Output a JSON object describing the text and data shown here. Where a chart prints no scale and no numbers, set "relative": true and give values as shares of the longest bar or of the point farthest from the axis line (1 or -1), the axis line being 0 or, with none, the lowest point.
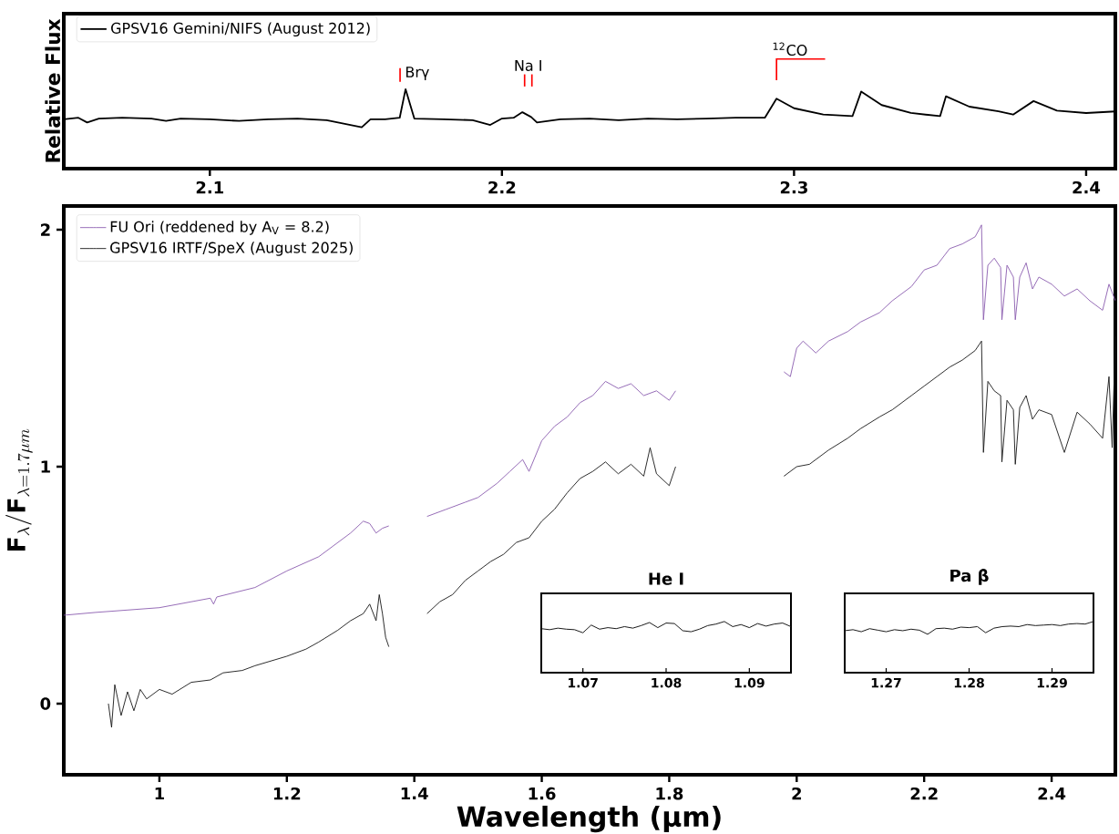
{
  "chart_data": [
    {
      "type": "line",
      "relative": true,
      "ylabel": "Relative Flux",
      "xlim": [
        2.05,
        2.41
      ],
      "xticks": [
        2.1,
        2.2,
        2.3,
        2.4
      ],
      "legend": "top left",
      "series": [
        {
          "name": "GPSV16 Gemini/NIFS (August 2012)",
          "color": "#000000",
          "x": [
            2.05,
            2.055,
            2.058,
            2.062,
            2.07,
            2.08,
            2.085,
            2.09,
            2.1,
            2.11,
            2.12,
            2.13,
            2.14,
            2.152,
            2.155,
            2.16,
            2.165,
            2.167,
            2.17,
            2.18,
            2.19,
            2.196,
            2.2,
            2.204,
            2.207,
            2.21,
            2.212,
            2.22,
            2.23,
            2.24,
            2.25,
            2.26,
            2.27,
            2.28,
            2.29,
            2.294,
            2.3,
            2.31,
            2.32,
            2.323,
            2.33,
            2.34,
            2.35,
            2.352,
            2.36,
            2.37,
            2.375,
            2.382,
            2.39,
            2.4,
            2.41
          ],
          "values": [
            0.62,
            0.64,
            0.58,
            0.63,
            0.64,
            0.63,
            0.6,
            0.63,
            0.62,
            0.6,
            0.62,
            0.63,
            0.61,
            0.52,
            0.62,
            0.62,
            0.64,
            1.0,
            0.63,
            0.62,
            0.61,
            0.55,
            0.63,
            0.64,
            0.71,
            0.65,
            0.58,
            0.62,
            0.63,
            0.61,
            0.63,
            0.62,
            0.63,
            0.64,
            0.64,
            0.88,
            0.76,
            0.68,
            0.66,
            0.97,
            0.8,
            0.7,
            0.66,
            0.91,
            0.78,
            0.72,
            0.68,
            0.85,
            0.73,
            0.7,
            0.72
          ]
        }
      ],
      "annotations": [
        "Brγ",
        "Na I",
        "$^{12}$CO"
      ]
    },
    {
      "type": "line",
      "xlabel": "Wavelength (μm)",
      "ylabel": "\\mathbf{F}_{\\lambda}/\\mathbf{F}_{\\lambda = 1.7\\mu m}",
      "xlim": [
        0.85,
        2.5
      ],
      "ylim": [
        -0.3,
        2.1
      ],
      "xticks": [
        1,
        1.2,
        1.4,
        1.6,
        1.8,
        2,
        2.2,
        2.4
      ],
      "yticks": [
        0,
        1,
        2
      ],
      "legend": "top left",
      "series": [
        {
          "name": "FU Ori (reddened by A$_{V}$ = 8.2)",
          "color": "#8c5fb0",
          "x": [
            0.85,
            0.9,
            0.95,
            1.0,
            1.05,
            1.08,
            1.085,
            1.09,
            1.15,
            1.2,
            1.25,
            1.3,
            1.32,
            1.33,
            1.34,
            1.35,
            1.36,
            1.39,
            1.42,
            1.45,
            1.48,
            1.5,
            1.53,
            1.55,
            1.57,
            1.58,
            1.6,
            1.62,
            1.64,
            1.66,
            1.68,
            1.7,
            1.72,
            1.74,
            1.76,
            1.78,
            1.8,
            1.81,
            1.9,
            1.98,
            1.99,
            2.0,
            2.01,
            2.03,
            2.05,
            2.08,
            2.1,
            2.13,
            2.15,
            2.18,
            2.2,
            2.22,
            2.24,
            2.26,
            2.28,
            2.29,
            2.293,
            2.3,
            2.31,
            2.32,
            2.322,
            2.33,
            2.34,
            2.343,
            2.35,
            2.36,
            2.37,
            2.38,
            2.4,
            2.42,
            2.44,
            2.46,
            2.48,
            2.49,
            2.5
          ],
          "values": [
            0.373,
            0.385,
            0.395,
            0.405,
            0.43,
            0.445,
            0.42,
            0.45,
            0.49,
            0.56,
            0.62,
            0.72,
            0.77,
            0.76,
            0.72,
            0.74,
            0.75,
            null,
            0.79,
            0.82,
            0.85,
            0.87,
            0.93,
            0.98,
            1.03,
            0.98,
            1.11,
            1.17,
            1.21,
            1.27,
            1.3,
            1.36,
            1.33,
            1.35,
            1.3,
            1.32,
            1.28,
            1.32,
            null,
            1.4,
            1.38,
            1.5,
            1.53,
            1.48,
            1.53,
            1.57,
            1.61,
            1.65,
            1.7,
            1.76,
            1.83,
            1.85,
            1.92,
            1.94,
            1.97,
            2.02,
            1.62,
            1.85,
            1.88,
            1.84,
            1.62,
            1.85,
            1.8,
            1.62,
            1.8,
            1.86,
            1.75,
            1.8,
            1.77,
            1.72,
            1.75,
            1.7,
            1.66,
            1.77,
            1.7
          ]
        },
        {
          "name": "GPSV16 IRTF/SpeX (August 2025)",
          "color": "#1a1a1a",
          "x": [
            0.92,
            0.925,
            0.93,
            0.94,
            0.95,
            0.96,
            0.97,
            0.98,
            1.0,
            1.02,
            1.05,
            1.08,
            1.1,
            1.13,
            1.15,
            1.2,
            1.23,
            1.25,
            1.28,
            1.3,
            1.32,
            1.33,
            1.34,
            1.345,
            1.35,
            1.355,
            1.36,
            1.39,
            1.42,
            1.44,
            1.46,
            1.48,
            1.5,
            1.52,
            1.54,
            1.56,
            1.58,
            1.6,
            1.62,
            1.64,
            1.66,
            1.68,
            1.7,
            1.72,
            1.74,
            1.76,
            1.77,
            1.78,
            1.8,
            1.81,
            1.9,
            1.98,
            2.0,
            2.02,
            2.05,
            2.08,
            2.1,
            2.13,
            2.15,
            2.18,
            2.2,
            2.22,
            2.24,
            2.26,
            2.28,
            2.29,
            2.293,
            2.3,
            2.31,
            2.32,
            2.322,
            2.33,
            2.34,
            2.343,
            2.35,
            2.36,
            2.37,
            2.38,
            2.4,
            2.42,
            2.44,
            2.46,
            2.48,
            2.49,
            2.495,
            2.5
          ],
          "values": [
            0.0,
            -0.1,
            0.08,
            -0.05,
            0.05,
            -0.03,
            0.06,
            0.02,
            0.06,
            0.04,
            0.09,
            0.1,
            0.13,
            0.14,
            0.16,
            0.2,
            0.23,
            0.26,
            0.31,
            0.35,
            0.38,
            0.42,
            0.35,
            0.46,
            0.38,
            0.28,
            0.24,
            null,
            0.38,
            0.43,
            0.46,
            0.52,
            0.56,
            0.6,
            0.63,
            0.68,
            0.7,
            0.77,
            0.82,
            0.89,
            0.95,
            0.98,
            1.02,
            0.97,
            1.01,
            0.96,
            1.08,
            0.97,
            0.92,
            1.0,
            null,
            0.96,
            1.0,
            1.01,
            1.07,
            1.12,
            1.16,
            1.21,
            1.24,
            1.3,
            1.34,
            1.38,
            1.42,
            1.45,
            1.49,
            1.53,
            1.06,
            1.36,
            1.32,
            1.3,
            1.02,
            1.28,
            1.24,
            1.01,
            1.25,
            1.3,
            1.2,
            1.24,
            1.22,
            1.06,
            1.23,
            1.18,
            1.12,
            1.38,
            1.08,
            1.55
          ]
        }
      ]
    },
    {
      "type": "line",
      "relative": true,
      "title": "He I",
      "xlim": [
        1.065,
        1.095
      ],
      "xticks": [
        1.07,
        1.08,
        1.09
      ],
      "series": [
        {
          "color": "#1a1a1a",
          "x": [
            1.065,
            1.066,
            1.067,
            1.068,
            1.069,
            1.07,
            1.071,
            1.072,
            1.073,
            1.074,
            1.075,
            1.076,
            1.077,
            1.078,
            1.079,
            1.08,
            1.081,
            1.082,
            1.083,
            1.084,
            1.085,
            1.086,
            1.087,
            1.088,
            1.089,
            1.09,
            1.091,
            1.092,
            1.093,
            1.094,
            1.095
          ],
          "values": [
            0.86,
            0.84,
            0.87,
            0.85,
            0.84,
            0.78,
            0.93,
            0.85,
            0.88,
            0.86,
            0.9,
            0.87,
            0.92,
            0.98,
            0.88,
            0.97,
            0.96,
            0.82,
            0.8,
            0.85,
            0.92,
            0.95,
            1.0,
            0.9,
            0.94,
            0.88,
            0.96,
            0.91,
            0.95,
            0.97,
            0.9
          ]
        }
      ]
    },
    {
      "type": "line",
      "relative": true,
      "title": "Pa β",
      "xlim": [
        1.265,
        1.295
      ],
      "xticks": [
        1.27,
        1.28,
        1.29
      ],
      "series": [
        {
          "color": "#1a1a1a",
          "x": [
            1.265,
            1.266,
            1.267,
            1.268,
            1.269,
            1.27,
            1.271,
            1.272,
            1.273,
            1.274,
            1.275,
            1.276,
            1.277,
            1.278,
            1.279,
            1.28,
            1.281,
            1.282,
            1.283,
            1.284,
            1.285,
            1.286,
            1.287,
            1.288,
            1.289,
            1.29,
            1.291,
            1.292,
            1.293,
            1.294,
            1.295
          ],
          "values": [
            0.82,
            0.84,
            0.8,
            0.86,
            0.83,
            0.8,
            0.84,
            0.82,
            0.85,
            0.83,
            0.75,
            0.86,
            0.87,
            0.85,
            0.89,
            0.88,
            0.9,
            0.78,
            0.87,
            0.9,
            0.91,
            0.9,
            0.94,
            0.92,
            0.93,
            0.94,
            0.92,
            0.95,
            0.96,
            0.95,
            1.0
          ]
        }
      ]
    }
  ]
}
